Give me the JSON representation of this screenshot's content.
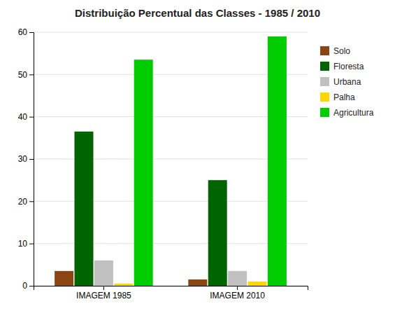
{
  "chart_data": {
    "type": "bar",
    "title": "Distribuição Percentual das Classes - 1985 / 2010",
    "categories": [
      "IMAGEM 1985",
      "IMAGEM 2010"
    ],
    "series": [
      {
        "name": "Solo",
        "color": "#8B4513",
        "values": [
          3.5,
          1.5
        ]
      },
      {
        "name": "Floresta",
        "color": "#006400",
        "values": [
          36.5,
          25.0
        ]
      },
      {
        "name": "Urbana",
        "color": "#C0C0C0",
        "values": [
          6.0,
          3.5
        ]
      },
      {
        "name": "Palha",
        "color": "#FFD700",
        "values": [
          0.5,
          1.0
        ]
      },
      {
        "name": "Agricultura",
        "color": "#00CC00",
        "values": [
          53.5,
          59.0
        ]
      }
    ],
    "ylim": [
      0,
      60
    ],
    "yticks": [
      0,
      10,
      20,
      30,
      40,
      50,
      60
    ],
    "grid": true,
    "legend": "right"
  }
}
